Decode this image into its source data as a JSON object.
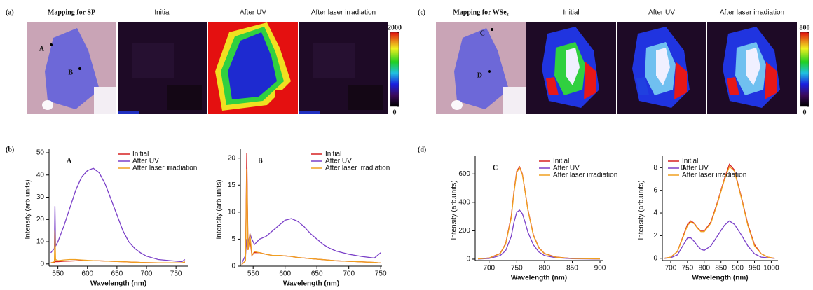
{
  "maps": [
    {
      "label": "(a)",
      "titles": [
        "Mapping for SP",
        "Initial",
        "After UV",
        "After laser irradiation"
      ],
      "points": [
        "A",
        "B"
      ],
      "colorbar": {
        "lim": [
          0,
          2000
        ],
        "ticks": [
          2000,
          0
        ]
      }
    },
    {
      "label": "(c)",
      "titles": [
        "Mapping for WSe₂",
        "Initial",
        "After UV",
        "After laser irradiation"
      ],
      "points": [
        "C",
        "D"
      ],
      "colorbar": {
        "lim": [
          0,
          800
        ],
        "ticks": [
          800,
          0
        ]
      }
    }
  ],
  "panel_labels": [
    "(b)",
    "(d)"
  ],
  "chart_data": [
    {
      "type": "line",
      "annotation": "A",
      "xlabel": "Wavelength (nm)",
      "ylabel": "Intensity (arb.units)",
      "x": [
        538,
        544,
        545,
        546,
        550,
        560,
        570,
        580,
        590,
        600,
        610,
        620,
        630,
        640,
        650,
        660,
        670,
        680,
        690,
        700,
        720,
        740,
        760,
        765
      ],
      "series": [
        {
          "name": "Initial",
          "color": "#d62020",
          "values": [
            0.5,
            0.8,
            2,
            1,
            1,
            1.2,
            1.3,
            1.4,
            1.5,
            1.5,
            1.5,
            1.4,
            1.3,
            1.2,
            1.1,
            1,
            0.9,
            0.8,
            0.7,
            0.6,
            0.5,
            0.5,
            0.5,
            0.5
          ]
        },
        {
          "name": "After UV",
          "color": "#7a3fc8",
          "values": [
            5,
            7,
            26,
            8,
            10,
            17,
            25,
            33,
            39,
            42,
            43,
            41,
            36,
            29,
            22,
            15,
            10,
            7,
            5,
            3.5,
            2,
            1.5,
            1,
            2
          ]
        },
        {
          "name": "After laser irradiation",
          "color": "#f0a020",
          "values": [
            0.5,
            1,
            15,
            2,
            1.5,
            1.8,
            2,
            2,
            1.8,
            1.6,
            1.5,
            1.4,
            1.3,
            1.2,
            1.1,
            1,
            0.9,
            0.8,
            0.7,
            0.6,
            0.5,
            0.5,
            0.5,
            1
          ]
        }
      ],
      "xlim": [
        535,
        770
      ],
      "ylim": [
        -1,
        50
      ],
      "xticks": [
        550,
        600,
        650,
        700,
        750
      ],
      "yticks": [
        0,
        10,
        20,
        30,
        40,
        50
      ],
      "legend": "upper right"
    },
    {
      "type": "line",
      "annotation": "B",
      "xlabel": "Wavelength (nm)",
      "ylabel": "Intensity (arb.units)",
      "x": [
        532,
        538,
        540,
        542,
        545,
        548,
        552,
        560,
        570,
        580,
        590,
        600,
        610,
        620,
        630,
        640,
        650,
        660,
        670,
        680,
        700,
        720,
        740,
        750
      ],
      "series": [
        {
          "name": "Initial",
          "color": "#d62020",
          "values": [
            0.3,
            1,
            21,
            3,
            5,
            2,
            2.5,
            2.5,
            2.2,
            2,
            2,
            1.9,
            1.8,
            1.6,
            1.5,
            1.4,
            1.3,
            1.2,
            1.1,
            1,
            0.9,
            0.8,
            0.7,
            0.6
          ]
        },
        {
          "name": "After UV",
          "color": "#7a3fc8",
          "values": [
            0.5,
            2,
            5,
            4,
            6,
            5,
            4,
            5,
            5.5,
            6.5,
            7.5,
            8.5,
            8.8,
            8.3,
            7.3,
            6,
            5,
            4,
            3.3,
            2.8,
            2.2,
            1.8,
            1.5,
            2.5
          ]
        },
        {
          "name": "After laser irradiation",
          "color": "#f0a020",
          "values": [
            0.3,
            1,
            18,
            3,
            6,
            2,
            2.7,
            2.5,
            2.2,
            2,
            2,
            1.9,
            1.8,
            1.6,
            1.5,
            1.4,
            1.3,
            1.2,
            1.1,
            1,
            0.9,
            0.8,
            0.7,
            0.6
          ]
        }
      ],
      "xlim": [
        530,
        752
      ],
      "ylim": [
        0,
        21
      ],
      "xticks": [
        550,
        600,
        650,
        700,
        750
      ],
      "yticks": [
        0,
        5,
        10,
        15,
        20
      ],
      "legend": "upper right"
    },
    {
      "type": "line",
      "annotation": "C",
      "xlabel": "Wavelength (nm)",
      "ylabel": "Intensity (arb.units)",
      "x": [
        680,
        700,
        720,
        730,
        740,
        745,
        750,
        755,
        760,
        765,
        770,
        780,
        790,
        800,
        820,
        850,
        900
      ],
      "series": [
        {
          "name": "Initial",
          "color": "#d62020",
          "values": [
            2,
            8,
            40,
            110,
            300,
            480,
            620,
            650,
            600,
            480,
            350,
            170,
            80,
            40,
            15,
            5,
            2
          ]
        },
        {
          "name": "After UV",
          "color": "#7a3fc8",
          "values": [
            1,
            5,
            25,
            60,
            160,
            260,
            330,
            345,
            320,
            260,
            190,
            100,
            50,
            25,
            10,
            3,
            1
          ]
        },
        {
          "name": "After laser irradiation",
          "color": "#f0a020",
          "values": [
            2,
            8,
            38,
            105,
            290,
            470,
            610,
            645,
            595,
            475,
            345,
            165,
            78,
            38,
            14,
            5,
            2
          ]
        }
      ],
      "xlim": [
        675,
        905
      ],
      "ylim": [
        -10,
        700
      ],
      "xticks": [
        700,
        750,
        800,
        850,
        900
      ],
      "yticks": [
        0,
        200,
        400,
        600
      ],
      "legend": "upper right"
    },
    {
      "type": "line",
      "annotation": "D",
      "xlabel": "Wavelength (nm)",
      "ylabel": "Intensity (arb.units)",
      "x": [
        680,
        700,
        720,
        740,
        750,
        760,
        770,
        780,
        790,
        800,
        820,
        840,
        860,
        875,
        890,
        910,
        930,
        950,
        970,
        990,
        1010
      ],
      "series": [
        {
          "name": "Initial",
          "color": "#d62020",
          "values": [
            0,
            0.1,
            0.6,
            2.2,
            3.0,
            3.3,
            3.1,
            2.7,
            2.4,
            2.4,
            3.2,
            5,
            7,
            8.3,
            7.8,
            5.5,
            3,
            1.2,
            0.4,
            0.1,
            0
          ]
        },
        {
          "name": "After UV",
          "color": "#7a3fc8",
          "values": [
            0,
            0.05,
            0.3,
            1.3,
            1.8,
            1.8,
            1.5,
            1.1,
            0.8,
            0.7,
            1.1,
            2,
            2.9,
            3.3,
            3.0,
            2.1,
            1.1,
            0.4,
            0.1,
            0.05,
            0
          ]
        },
        {
          "name": "After laser irradiation",
          "color": "#f0a020",
          "values": [
            0,
            0.1,
            0.6,
            2.1,
            2.9,
            3.2,
            3.05,
            2.65,
            2.35,
            2.35,
            3.1,
            4.9,
            6.9,
            8.1,
            7.7,
            5.4,
            2.9,
            1.1,
            0.4,
            0.1,
            0
          ]
        }
      ],
      "xlim": [
        675,
        1020
      ],
      "ylim": [
        -0.2,
        8.7
      ],
      "xticks": [
        700,
        750,
        800,
        850,
        900,
        950,
        1000
      ],
      "yticks": [
        0,
        2,
        4,
        6,
        8
      ],
      "legend": "upper left"
    }
  ]
}
